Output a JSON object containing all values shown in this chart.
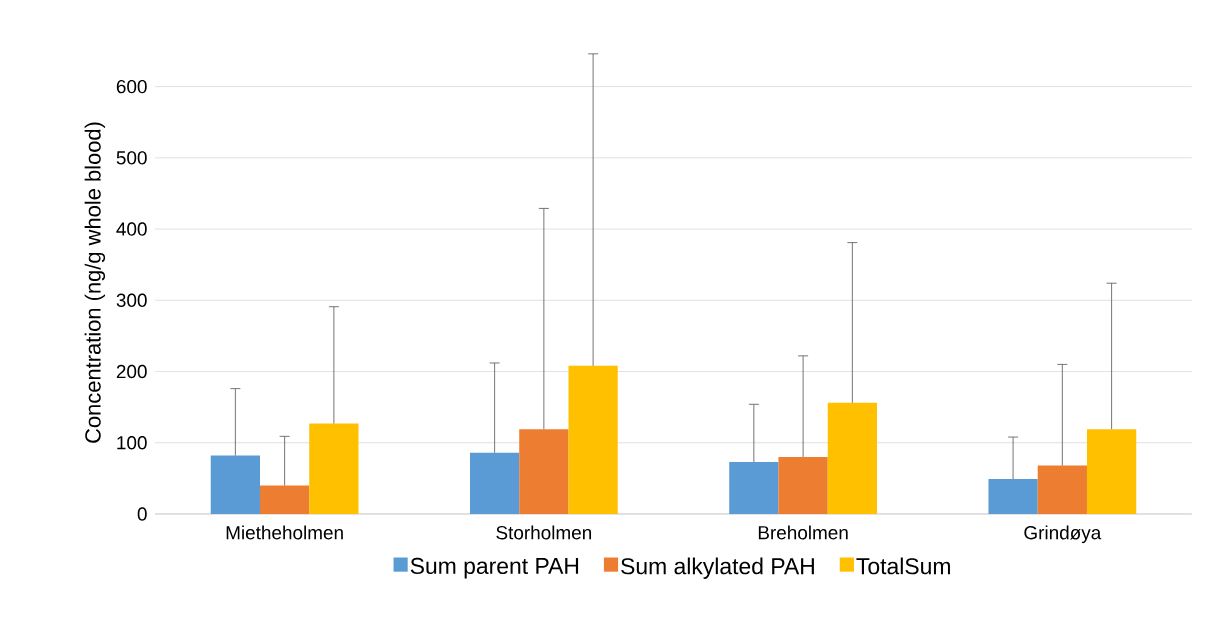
{
  "chart_data": {
    "type": "bar",
    "ylabel": "Concentration (ng/g whole blood)",
    "categories": [
      "Mietheholmen",
      "Storholmen",
      "Breholmen",
      "Grindøya"
    ],
    "series": [
      {
        "name": "Sum parent PAH",
        "color": "#5b9bd5",
        "values": [
          82,
          86,
          73,
          49
        ],
        "errors": [
          [
            82,
            176
          ],
          [
            86,
            212
          ],
          [
            73,
            154
          ],
          [
            49,
            108
          ]
        ]
      },
      {
        "name": "Sum alkylated PAH",
        "color": "#ed7d31",
        "values": [
          40,
          119,
          80,
          68
        ],
        "errors": [
          [
            40,
            109
          ],
          [
            119,
            429
          ],
          [
            80,
            222
          ],
          [
            68,
            210
          ]
        ]
      },
      {
        "name": "TotalSum",
        "color": "#ffc000",
        "values": [
          127,
          208,
          156,
          119
        ],
        "errors": [
          [
            127,
            291
          ],
          [
            208,
            646
          ],
          [
            156,
            381
          ],
          [
            119,
            324
          ]
        ]
      }
    ],
    "ylim": [
      0,
      650
    ],
    "yticks": [
      0,
      100,
      200,
      300,
      400,
      500,
      600
    ],
    "grid": "y",
    "legend": "bottom"
  }
}
